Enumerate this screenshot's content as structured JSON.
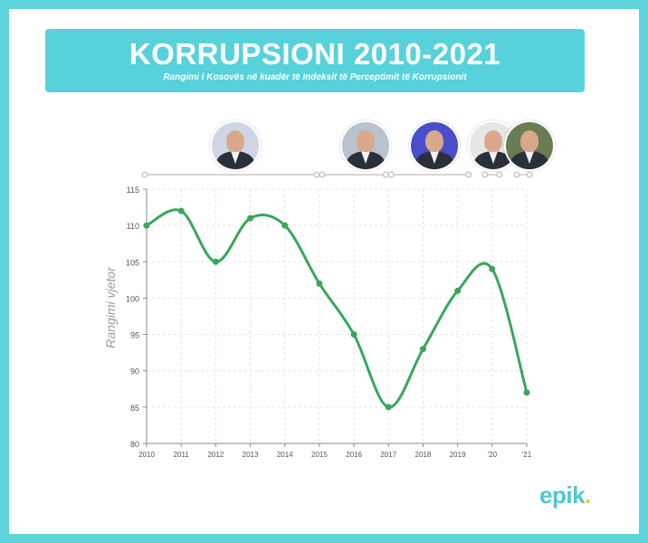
{
  "title": "KORRUPSIONI 2010-2021",
  "subtitle": "Rangimi i Kosovës në kuadër të Indeksit të Perceptimit të Korrupsionit",
  "brand": {
    "name": "epik",
    "dot": ".",
    "color": "#4fc7d3",
    "dot_color": "#f4c430"
  },
  "colors": {
    "background": "#5fd3dc",
    "banner": "#57d2db",
    "line": "#3aa65c",
    "timeline": "#c8c8c8"
  },
  "leaders": [
    {
      "icon": "portrait-icon",
      "period_start": 2010,
      "period_end": 2015
    },
    {
      "icon": "portrait-icon",
      "period_start": 2015,
      "period_end": 2017
    },
    {
      "icon": "portrait-icon",
      "period_start": 2017,
      "period_end": 2019
    },
    {
      "icon": "portrait-icon",
      "period_start": 2020,
      "period_end": 2021
    },
    {
      "icon": "portrait-icon",
      "period_start": 2021,
      "period_end": 2021
    }
  ],
  "chart_data": {
    "type": "line",
    "title": "KORRUPSIONI 2010-2021",
    "ylabel": "Rangimi vjetor",
    "xlabel": "",
    "ylim": [
      80,
      115
    ],
    "yticks": [
      80,
      85,
      90,
      95,
      100,
      105,
      110,
      115
    ],
    "categories": [
      "2010",
      "2011",
      "2012",
      "2013",
      "2014",
      "2015",
      "2016",
      "2017",
      "2018",
      "2019",
      "'20",
      "'21"
    ],
    "x": [
      2010,
      2011,
      2012,
      2013,
      2014,
      2015,
      2016,
      2017,
      2018,
      2019,
      2020,
      2021
    ],
    "series": [
      {
        "values": [
          110,
          112,
          105,
          111,
          110,
          102,
          95,
          85,
          93,
          101,
          104,
          87
        ]
      }
    ],
    "grid": true,
    "curve": "smooth",
    "legend": "none"
  }
}
